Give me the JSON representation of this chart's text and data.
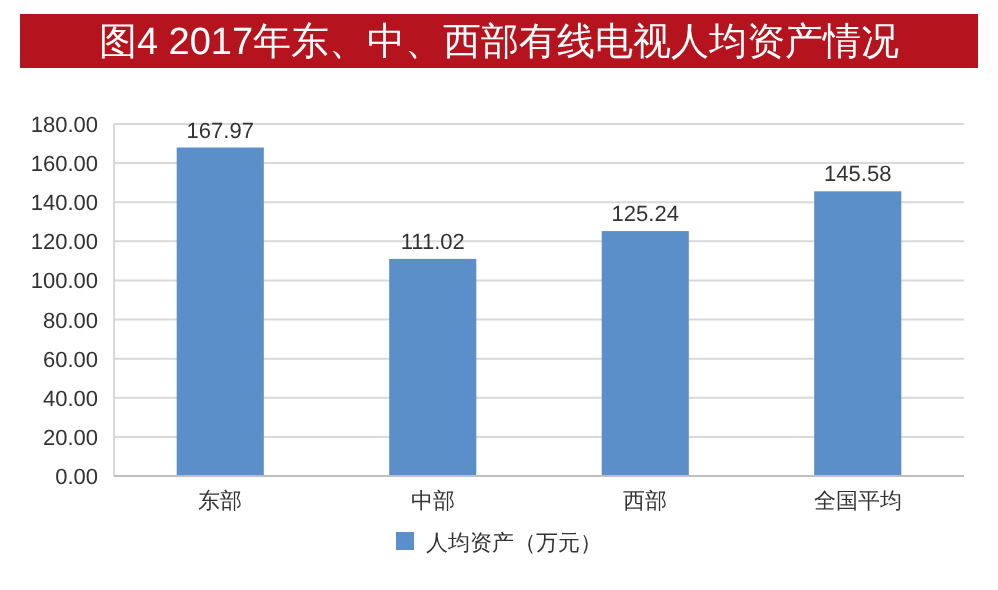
{
  "chart_data": {
    "type": "bar",
    "title": "图4 2017年东、中、西部有线电视人均资产情况",
    "categories": [
      "东部",
      "中部",
      "西部",
      "全国平均"
    ],
    "series": [
      {
        "name": "人均资产（万元）",
        "color": "#5b8fc9",
        "values": [
          167.97,
          111.02,
          125.24,
          145.58
        ]
      }
    ],
    "ylim": [
      0,
      180
    ],
    "yticks": [
      {
        "value": 0,
        "label": "0.00"
      },
      {
        "value": 20,
        "label": "20.00"
      },
      {
        "value": 40,
        "label": "40.00"
      },
      {
        "value": 60,
        "label": "60.00"
      },
      {
        "value": 80,
        "label": "80.00"
      },
      {
        "value": 100,
        "label": "100.00"
      },
      {
        "value": 120,
        "label": "120.00"
      },
      {
        "value": 140,
        "label": "140.00"
      },
      {
        "value": 160,
        "label": "160.00"
      },
      {
        "value": 180,
        "label": "180.00"
      }
    ],
    "grid": "y",
    "legend": "bottom",
    "data_labels": true
  }
}
